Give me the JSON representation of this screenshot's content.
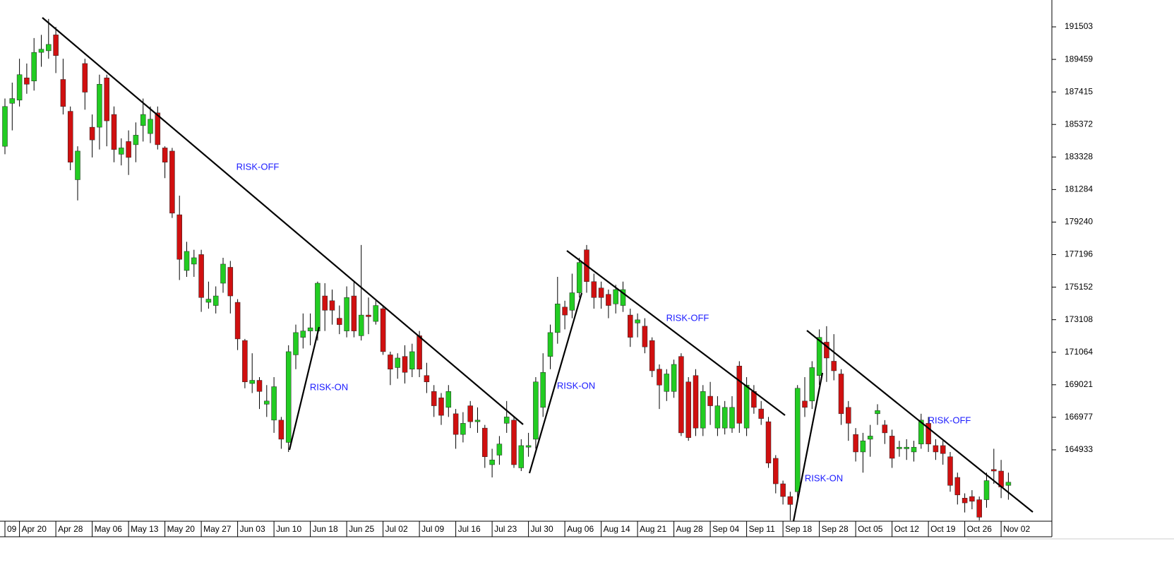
{
  "chart_data": {
    "type": "candlestick",
    "categories": [
      "09",
      null,
      "Apr 20",
      null,
      null,
      null,
      null,
      "Apr 28",
      null,
      null,
      null,
      null,
      "May 06",
      null,
      null,
      null,
      null,
      "May 13",
      null,
      null,
      null,
      null,
      "May 20",
      null,
      null,
      null,
      null,
      "May 27",
      null,
      null,
      null,
      null,
      "Jun 03",
      null,
      null,
      null,
      null,
      "Jun 10",
      null,
      null,
      null,
      null,
      "Jun 18",
      null,
      null,
      null,
      null,
      "Jun 25",
      null,
      null,
      null,
      null,
      "Jul 02",
      null,
      null,
      null,
      null,
      "Jul 09",
      null,
      null,
      null,
      null,
      "Jul 16",
      null,
      null,
      null,
      null,
      "Jul 23",
      null,
      null,
      null,
      null,
      "Jul 30",
      null,
      null,
      null,
      null,
      "Aug 06",
      null,
      null,
      null,
      null,
      "Aug 14",
      null,
      null,
      null,
      null,
      "Aug 21",
      null,
      null,
      null,
      null,
      "Aug 28",
      null,
      null,
      null,
      null,
      "Sep 04",
      null,
      null,
      null,
      null,
      "Sep 11",
      null,
      null,
      null,
      null,
      "Sep 18",
      null,
      null,
      null,
      null,
      "Sep 28",
      null,
      null,
      null,
      null,
      "Oct 05",
      null,
      null,
      null,
      null,
      "Oct 12",
      null,
      null,
      null,
      null,
      "Oct 19",
      null,
      null,
      null,
      null,
      "Oct 26",
      null,
      null,
      null,
      null,
      "Nov 02",
      null
    ],
    "open": [
      184000,
      186700,
      186900,
      188300,
      188100,
      189900,
      190000,
      191000,
      188200,
      186200,
      181900,
      189200,
      185200,
      185200,
      188300,
      186000,
      183500,
      184300,
      184100,
      185300,
      184800,
      186100,
      183900,
      183700,
      179700,
      176200,
      176600,
      177200,
      174200,
      174000,
      175400,
      176400,
      174200,
      171800,
      169100,
      169300,
      167800,
      166800,
      166800,
      165400,
      170900,
      172000,
      172400,
      172400,
      174600,
      174300,
      173200,
      172400,
      174600,
      172100,
      173400,
      173000,
      173800,
      170900,
      170100,
      170800,
      170000,
      172100,
      169600,
      168600,
      168200,
      167600,
      167200,
      165900,
      167700,
      166700,
      166300,
      164000,
      164600,
      166600,
      166800,
      163800,
      165100,
      165600,
      167600,
      170800,
      172300,
      173900,
      173700,
      174800,
      177500,
      175500,
      175100,
      174700,
      174100,
      174000,
      173400,
      172900,
      172700,
      171800,
      170000,
      168600,
      168600,
      170800,
      169200,
      169600,
      166300,
      168300,
      166300,
      166300,
      166300,
      170200,
      166300,
      168600,
      167500,
      166700,
      164400,
      162800,
      162000,
      162300,
      168000,
      168000,
      169600,
      171700,
      170500,
      169700,
      167600,
      165900,
      164800,
      165600,
      167200,
      166500,
      165800,
      165000,
      165000,
      164800,
      165300,
      166600,
      165200,
      165200,
      164500,
      163200,
      161900,
      162000,
      161800,
      161800,
      163700,
      163600,
      162700
    ],
    "high": [
      187000,
      188000,
      189500,
      189200,
      190800,
      191000,
      192000,
      191500,
      189500,
      186500,
      184000,
      189500,
      186000,
      188500,
      188500,
      186500,
      184500,
      185000,
      185500,
      187000,
      186500,
      186500,
      184000,
      183900,
      180900,
      178000,
      177500,
      177500,
      175500,
      175200,
      177000,
      176800,
      174400,
      171900,
      171000,
      169500,
      169000,
      169500,
      167000,
      171500,
      172800,
      173500,
      173500,
      175500,
      175400,
      175000,
      174000,
      175200,
      175500,
      177800,
      174500,
      174300,
      174000,
      171100,
      171000,
      171500,
      171600,
      172400,
      170400,
      169000,
      168500,
      169000,
      167500,
      167300,
      168000,
      167600,
      166500,
      165000,
      165800,
      168000,
      167000,
      165600,
      166000,
      169500,
      171000,
      172800,
      175800,
      174300,
      176000,
      177000,
      177800,
      176000,
      175500,
      175000,
      175300,
      175500,
      173800,
      173500,
      173200,
      172000,
      170300,
      170000,
      170600,
      171000,
      169500,
      170000,
      169000,
      169200,
      168300,
      168000,
      168300,
      170500,
      169500,
      169000,
      168000,
      167000,
      164600,
      163000,
      162300,
      169000,
      169500,
      170500,
      172500,
      172700,
      172200,
      170000,
      168000,
      166300,
      166000,
      166500,
      167800,
      166800,
      166200,
      165500,
      165600,
      165500,
      167200,
      167000,
      165600,
      165500,
      164800,
      163500,
      162200,
      162400,
      162000,
      163500,
      165000,
      164300,
      163500
    ],
    "low": [
      183500,
      185000,
      186500,
      187300,
      187500,
      189000,
      189500,
      188600,
      186000,
      182500,
      180600,
      186300,
      183300,
      183800,
      184000,
      183000,
      182800,
      182200,
      183000,
      184300,
      184200,
      183800,
      182000,
      179500,
      175600,
      175800,
      175800,
      173600,
      173800,
      173500,
      174800,
      173500,
      171200,
      168800,
      168500,
      167500,
      167000,
      166000,
      165000,
      164800,
      170000,
      171300,
      171500,
      171800,
      172400,
      172800,
      172200,
      172000,
      172000,
      171800,
      172200,
      172800,
      170900,
      169000,
      169400,
      169100,
      169500,
      169500,
      168500,
      167000,
      166500,
      167000,
      165000,
      165400,
      166300,
      166000,
      163800,
      163200,
      164000,
      166000,
      163800,
      163600,
      164500,
      165000,
      167000,
      170000,
      171600,
      172500,
      173200,
      174500,
      174800,
      173800,
      173800,
      173200,
      173500,
      173600,
      171400,
      172000,
      171000,
      169500,
      167500,
      168000,
      168200,
      165800,
      165500,
      165800,
      165800,
      166500,
      165800,
      165900,
      166000,
      166000,
      165800,
      167200,
      166500,
      163800,
      162200,
      161500,
      160500,
      161800,
      167000,
      167500,
      169000,
      169200,
      169300,
      166500,
      165500,
      164200,
      163500,
      164500,
      166500,
      165300,
      163800,
      164500,
      164300,
      164200,
      165000,
      164800,
      164300,
      164000,
      162300,
      161500,
      161000,
      161200,
      160500,
      161300,
      162800,
      161900,
      161800
    ],
    "close": [
      186500,
      187000,
      188500,
      187900,
      189900,
      190100,
      190400,
      189700,
      186500,
      183000,
      183700,
      187400,
      184400,
      187900,
      185600,
      183800,
      183900,
      183300,
      184700,
      186000,
      185700,
      184100,
      183000,
      179800,
      176900,
      177400,
      177000,
      174500,
      174400,
      174600,
      176600,
      174600,
      171900,
      169200,
      169300,
      168600,
      168000,
      168900,
      165600,
      171100,
      172300,
      172400,
      172600,
      175400,
      173700,
      173700,
      172800,
      174500,
      172400,
      173400,
      173300,
      174000,
      171100,
      170000,
      170700,
      169800,
      171100,
      170000,
      169200,
      167700,
      167100,
      168600,
      165900,
      166600,
      166700,
      166800,
      164500,
      164300,
      165300,
      167000,
      164000,
      165200,
      165200,
      169200,
      169800,
      172300,
      174100,
      173400,
      174800,
      176700,
      175500,
      174500,
      174500,
      174000,
      175000,
      175000,
      172000,
      173100,
      171400,
      169900,
      169000,
      169700,
      170300,
      166000,
      165700,
      166300,
      168600,
      167700,
      167700,
      167600,
      167600,
      166600,
      169000,
      167600,
      166900,
      164100,
      162800,
      162000,
      161500,
      168800,
      167600,
      170100,
      172000,
      170700,
      169900,
      167200,
      166600,
      164800,
      165500,
      165800,
      167400,
      166000,
      164400,
      165100,
      165100,
      165100,
      166800,
      165300,
      164800,
      164700,
      162700,
      162100,
      161600,
      161700,
      160700,
      163000,
      163600,
      162600,
      162900
    ],
    "up_color": "#22cc22",
    "down_color": "#d01010",
    "ylim": [
      160450,
      193190
    ],
    "yticks": [
      164933,
      166977,
      169021,
      171064,
      173108,
      175152,
      177196,
      179240,
      181284,
      183328,
      185372,
      187415,
      189459,
      191503
    ],
    "annotations": [
      "RISK-OFF",
      "RISK-ON",
      "RISK-ON",
      "RISK-OFF",
      "RISK-ON",
      "RISK-OFF"
    ]
  }
}
